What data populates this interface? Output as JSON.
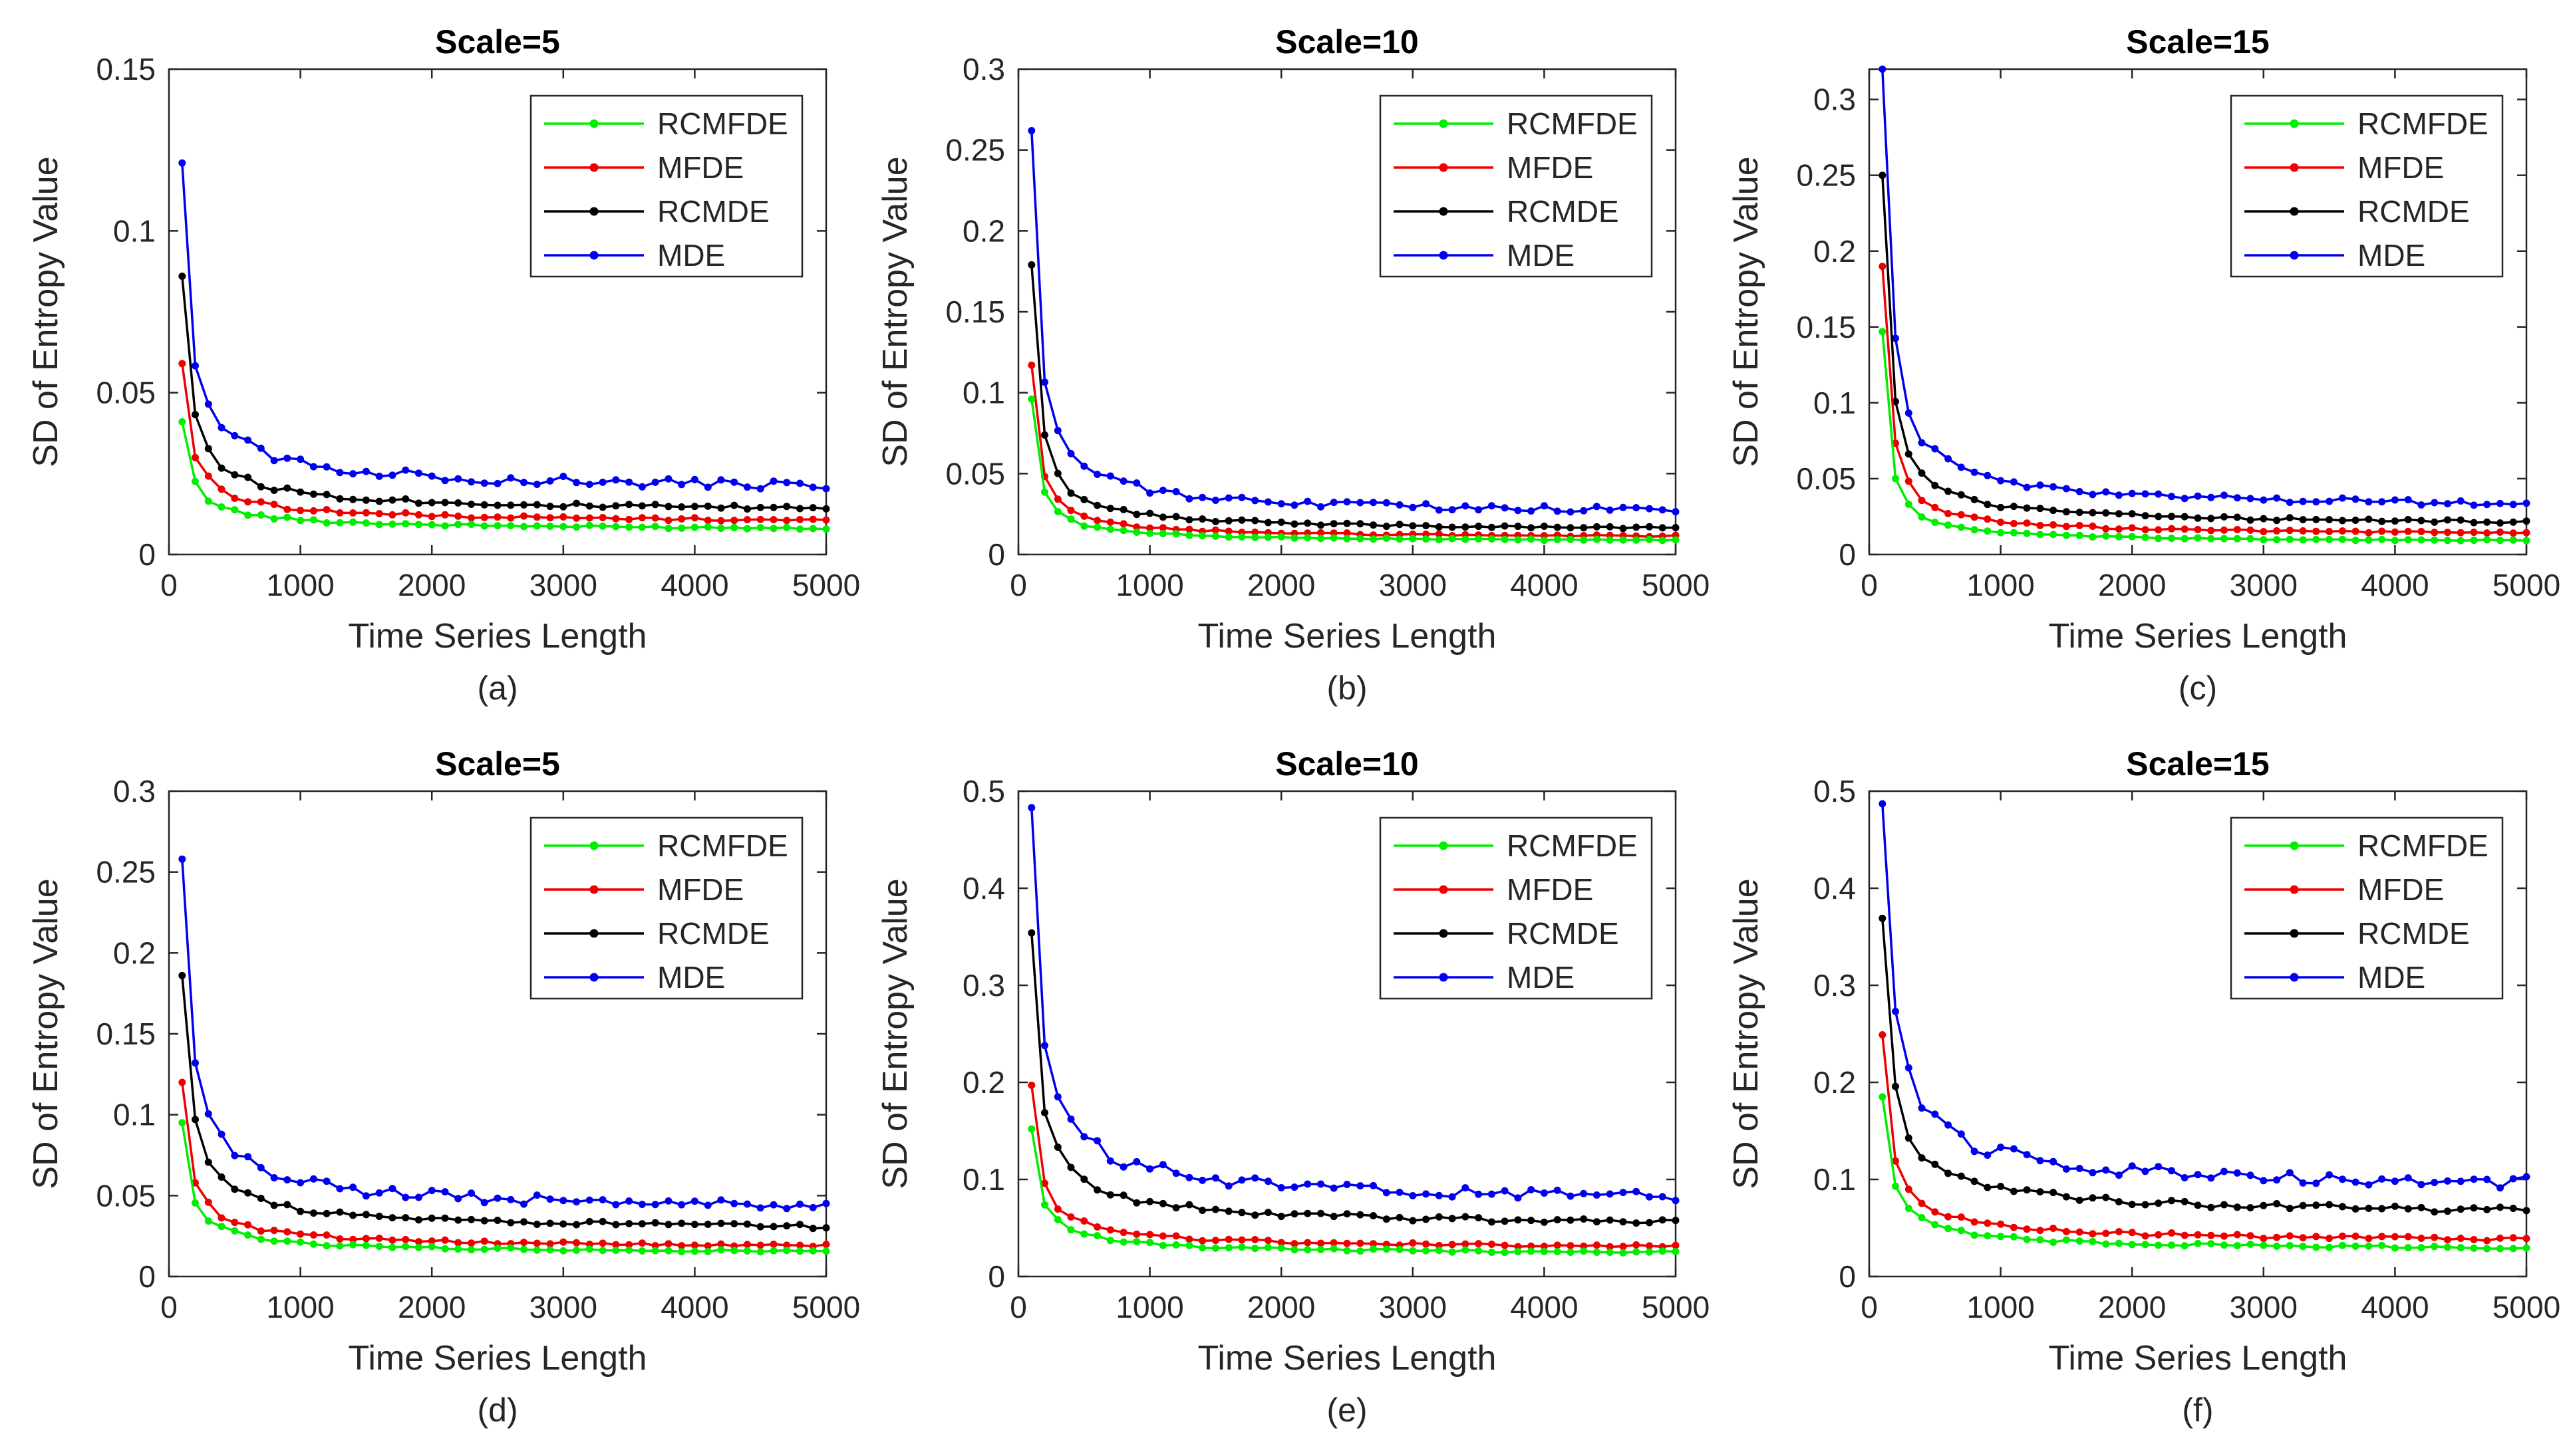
{
  "figure": {
    "legend_position": "top-right",
    "series_colors": {
      "RCMFDE": "#00ee00",
      "MFDE": "#ee0000",
      "RCMDE": "#000000",
      "MDE": "#0000ee"
    }
  },
  "chart_data": [
    {
      "type": "line",
      "panel_label": "(a)",
      "title": "Scale=5",
      "xlabel": "Time Series Length",
      "ylabel": "SD of Entropy Value",
      "xlim": [
        0,
        5000
      ],
      "ylim": [
        0,
        0.15
      ],
      "xticks": [
        "0",
        "1000",
        "2000",
        "3000",
        "4000",
        "5000"
      ],
      "yticks": [
        "0",
        "0.05",
        "0.1",
        "0.15"
      ],
      "grid": false,
      "series": [
        {
          "name": "RCMFDE",
          "start": 0.041,
          "end": 0.007
        },
        {
          "name": "MFDE",
          "start": 0.059,
          "end": 0.009
        },
        {
          "name": "RCMDE",
          "start": 0.086,
          "end": 0.012
        },
        {
          "name": "MDE",
          "start": 0.121,
          "end": 0.018
        }
      ]
    },
    {
      "type": "line",
      "panel_label": "(b)",
      "title": "Scale=10",
      "xlabel": "Time Series Length",
      "ylabel": "SD of Entropy Value",
      "xlim": [
        0,
        5000
      ],
      "ylim": [
        0,
        0.3
      ],
      "xticks": [
        "0",
        "1000",
        "2000",
        "3000",
        "4000",
        "5000"
      ],
      "yticks": [
        "0",
        "0.05",
        "0.1",
        "0.15",
        "0.2",
        "0.25",
        "0.3"
      ],
      "grid": false,
      "series": [
        {
          "name": "RCMFDE",
          "start": 0.096,
          "end": 0.007
        },
        {
          "name": "MFDE",
          "start": 0.117,
          "end": 0.009
        },
        {
          "name": "RCMDE",
          "start": 0.179,
          "end": 0.013
        },
        {
          "name": "MDE",
          "start": 0.262,
          "end": 0.022
        }
      ]
    },
    {
      "type": "line",
      "panel_label": "(c)",
      "title": "Scale=15",
      "xlabel": "Time Series Length",
      "ylabel": "SD of Entropy Value",
      "xlim": [
        0,
        5000
      ],
      "ylim": [
        0,
        0.32
      ],
      "xticks": [
        "0",
        "1000",
        "2000",
        "3000",
        "4000",
        "5000"
      ],
      "yticks": [
        "0",
        "0.05",
        "0.1",
        "0.15",
        "0.2",
        "0.25",
        "0.3"
      ],
      "grid": false,
      "series": [
        {
          "name": "RCMFDE",
          "start": 0.147,
          "end": 0.007
        },
        {
          "name": "MFDE",
          "start": 0.19,
          "end": 0.011
        },
        {
          "name": "RCMDE",
          "start": 0.25,
          "end": 0.017
        },
        {
          "name": "MDE",
          "start": 0.32,
          "end": 0.027
        }
      ]
    },
    {
      "type": "line",
      "panel_label": "(d)",
      "title": "Scale=5",
      "xlabel": "Time Series Length",
      "ylabel": "SD of Entropy Value",
      "xlim": [
        0,
        5000
      ],
      "ylim": [
        0,
        0.3
      ],
      "xticks": [
        "0",
        "1000",
        "2000",
        "3000",
        "4000",
        "5000"
      ],
      "yticks": [
        "0",
        "0.05",
        "0.1",
        "0.15",
        "0.2",
        "0.25",
        "0.3"
      ],
      "grid": false,
      "series": [
        {
          "name": "RCMFDE",
          "start": 0.095,
          "end": 0.013
        },
        {
          "name": "MFDE",
          "start": 0.12,
          "end": 0.016
        },
        {
          "name": "RCMDE",
          "start": 0.186,
          "end": 0.026
        },
        {
          "name": "MDE",
          "start": 0.258,
          "end": 0.037
        }
      ]
    },
    {
      "type": "line",
      "panel_label": "(e)",
      "title": "Scale=10",
      "xlabel": "Time Series Length",
      "ylabel": "SD of Entropy Value",
      "xlim": [
        0,
        5000
      ],
      "ylim": [
        0,
        0.5
      ],
      "xticks": [
        "0",
        "1000",
        "2000",
        "3000",
        "4000",
        "5000"
      ],
      "yticks": [
        "0",
        "0.1",
        "0.2",
        "0.3",
        "0.4",
        "0.5"
      ],
      "grid": false,
      "series": [
        {
          "name": "RCMFDE",
          "start": 0.152,
          "end": 0.021
        },
        {
          "name": "MFDE",
          "start": 0.197,
          "end": 0.026
        },
        {
          "name": "RCMDE",
          "start": 0.354,
          "end": 0.047
        },
        {
          "name": "MDE",
          "start": 0.483,
          "end": 0.07
        }
      ]
    },
    {
      "type": "line",
      "panel_label": "(f)",
      "title": "Scale=15",
      "xlabel": "Time Series Length",
      "ylabel": "SD of Entropy Value",
      "xlim": [
        0,
        5000
      ],
      "ylim": [
        0,
        0.5
      ],
      "xticks": [
        "0",
        "1000",
        "2000",
        "3000",
        "4000",
        "5000"
      ],
      "yticks": [
        "0",
        "0.1",
        "0.2",
        "0.3",
        "0.4",
        "0.5"
      ],
      "grid": false,
      "series": [
        {
          "name": "RCMFDE",
          "start": 0.185,
          "end": 0.025
        },
        {
          "name": "MFDE",
          "start": 0.249,
          "end": 0.032
        },
        {
          "name": "RCMDE",
          "start": 0.369,
          "end": 0.058
        },
        {
          "name": "MDE",
          "start": 0.487,
          "end": 0.083
        }
      ]
    }
  ]
}
